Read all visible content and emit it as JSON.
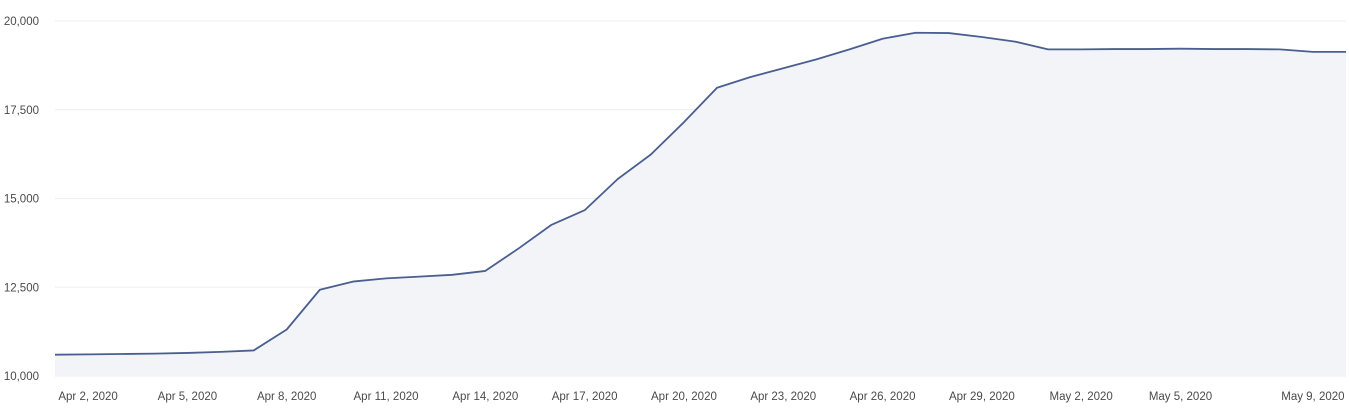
{
  "chart_data": {
    "type": "area",
    "title": "",
    "xlabel": "",
    "ylabel": "",
    "ylim": [
      10000,
      20000
    ],
    "grid": true,
    "legend": "none",
    "colors": {
      "line": "#4a5f8f",
      "fill": "#f2f4f8",
      "grid": "#eceef3",
      "text": "#4a4a4a"
    },
    "y_ticks": [
      10000,
      12500,
      15000,
      17500,
      20000
    ],
    "y_tick_labels": [
      "10,000",
      "12,500",
      "15,000",
      "17,500",
      "20,000"
    ],
    "x_ticks": [
      "2020-04-02",
      "2020-04-05",
      "2020-04-08",
      "2020-04-11",
      "2020-04-14",
      "2020-04-17",
      "2020-04-20",
      "2020-04-23",
      "2020-04-26",
      "2020-04-29",
      "2020-05-02",
      "2020-05-05",
      "2020-05-09"
    ],
    "x_tick_labels": [
      "Apr 2, 2020",
      "Apr 5, 2020",
      "Apr 8, 2020",
      "Apr 11, 2020",
      "Apr 14, 2020",
      "Apr 17, 2020",
      "Apr 20, 2020",
      "Apr 23, 2020",
      "Apr 26, 2020",
      "Apr 29, 2020",
      "May 2, 2020",
      "May 5, 2020",
      "May 9, 2020"
    ],
    "x": [
      "2020-04-01",
      "2020-04-02",
      "2020-04-03",
      "2020-04-04",
      "2020-04-05",
      "2020-04-06",
      "2020-04-07",
      "2020-04-08",
      "2020-04-09",
      "2020-04-10",
      "2020-04-11",
      "2020-04-12",
      "2020-04-13",
      "2020-04-14",
      "2020-04-15",
      "2020-04-16",
      "2020-04-17",
      "2020-04-18",
      "2020-04-19",
      "2020-04-20",
      "2020-04-21",
      "2020-04-22",
      "2020-04-23",
      "2020-04-24",
      "2020-04-25",
      "2020-04-26",
      "2020-04-27",
      "2020-04-28",
      "2020-04-29",
      "2020-04-30",
      "2020-05-01",
      "2020-05-02",
      "2020-05-03",
      "2020-05-04",
      "2020-05-05",
      "2020-05-06",
      "2020-05-07",
      "2020-05-08",
      "2020-05-09",
      "2020-05-10"
    ],
    "values": [
      10600,
      10610,
      10620,
      10630,
      10650,
      10680,
      10720,
      11310,
      12430,
      12660,
      12750,
      12800,
      12850,
      12960,
      13590,
      14260,
      14670,
      15550,
      16240,
      17150,
      18120,
      18420,
      18670,
      18920,
      19200,
      19500,
      19670,
      19660,
      19550,
      19420,
      19200,
      19200,
      19210,
      19210,
      19220,
      19210,
      19210,
      19200,
      19130,
      19130
    ]
  }
}
